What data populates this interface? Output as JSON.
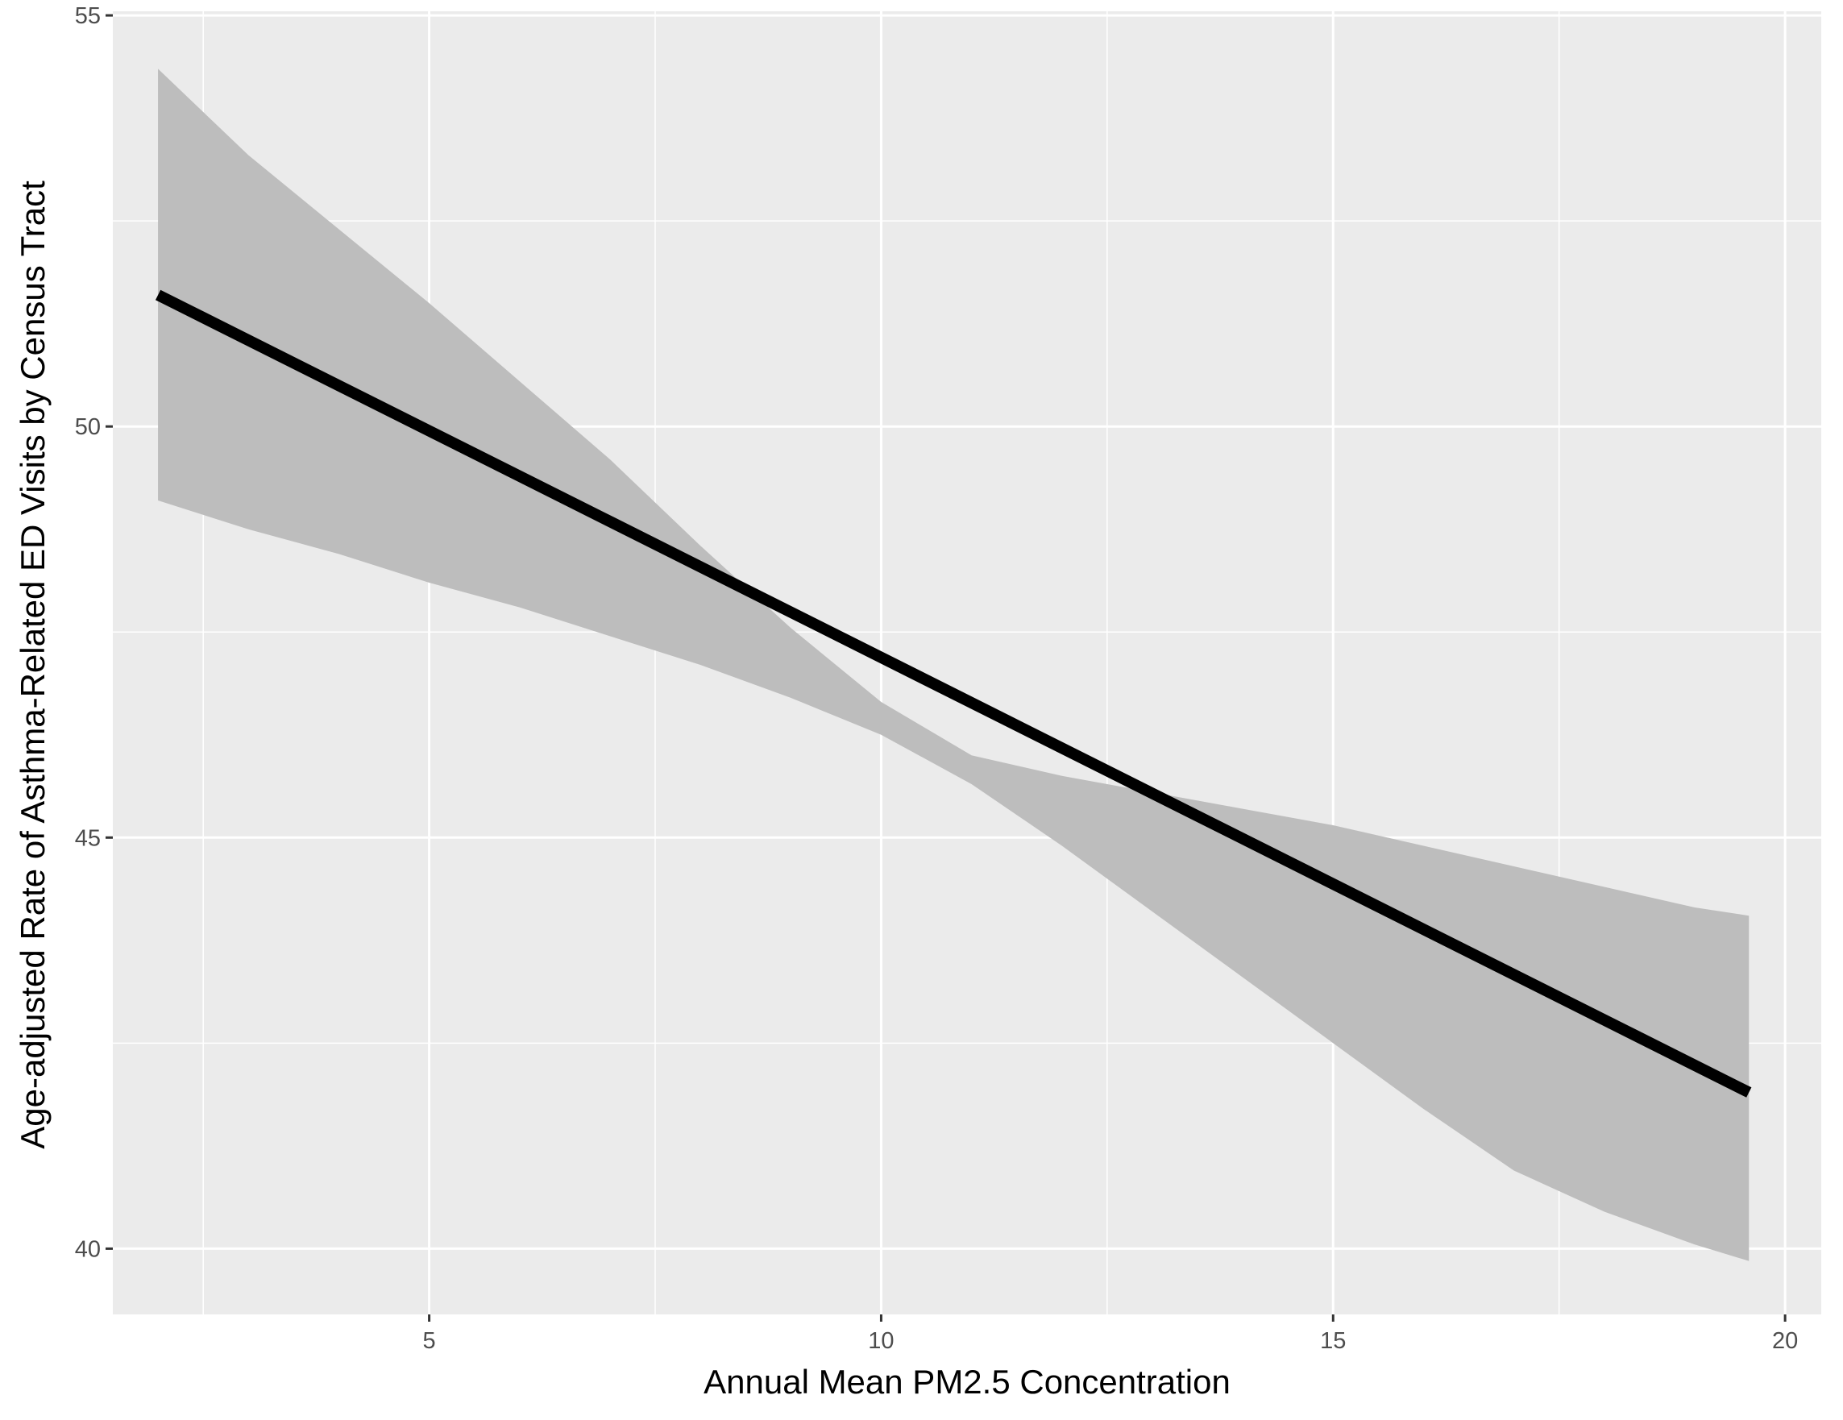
{
  "chart_data": {
    "type": "line",
    "title": "",
    "xlabel": "Annual Mean PM2.5 Concentration",
    "ylabel": "Age-adjusted Rate of Asthma-Related ED Visits by Census Tract",
    "xlim": [
      1.5,
      20.4
    ],
    "ylim": [
      39.2,
      55.05
    ],
    "x_ticks": [
      5,
      10,
      15,
      20
    ],
    "x_tick_labels": [
      "5",
      "10",
      "15",
      "20"
    ],
    "y_ticks": [
      40,
      45,
      50,
      55
    ],
    "y_tick_labels": [
      "40",
      "45",
      "50",
      "55"
    ],
    "grid": true,
    "legend": "none",
    "colors": {
      "panel_background": "#ebebeb",
      "gridline": "#ffffff",
      "line": "#000000",
      "ribbon": "#bdbdbd"
    },
    "series": [
      {
        "type": "line",
        "x": [
          2.0,
          19.6
        ],
        "y": [
          51.6,
          41.9
        ]
      }
    ],
    "confidence_band": {
      "x": [
        2.0,
        3.0,
        4.0,
        5.0,
        6.0,
        7.0,
        8.0,
        9.0,
        10.0,
        11.0,
        12.0,
        13.0,
        14.0,
        15.0,
        16.0,
        17.0,
        18.0,
        19.0,
        19.6
      ],
      "lower": [
        49.1,
        48.75,
        48.45,
        48.1,
        47.8,
        47.45,
        47.1,
        46.7,
        46.25,
        45.65,
        44.9,
        44.1,
        43.3,
        42.5,
        41.7,
        40.95,
        40.45,
        40.05,
        39.85
      ],
      "upper": [
        54.35,
        53.3,
        52.4,
        51.5,
        50.55,
        49.6,
        48.55,
        47.55,
        46.65,
        46.0,
        45.75,
        45.55,
        45.35,
        45.15,
        44.9,
        44.65,
        44.4,
        44.15,
        44.05
      ]
    }
  }
}
